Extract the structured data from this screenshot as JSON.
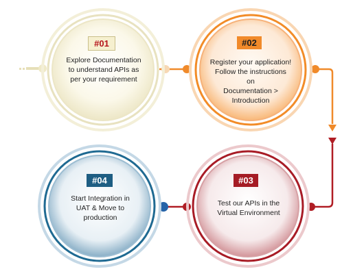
{
  "steps": [
    {
      "badge": "#01",
      "lines": [
        "Explore Documentation",
        "to understand APIs as",
        "per your requirement"
      ]
    },
    {
      "badge": "#02",
      "lines": [
        "Register your application!",
        "Follow the instructions",
        "on",
        "Documentation  >",
        "Introduction"
      ]
    },
    {
      "badge": "#03",
      "lines": [
        "Test our APIs in the",
        "Virtual Environment"
      ]
    },
    {
      "badge": "#04",
      "lines": [
        "Start Integration  in",
        "UAT & Move to",
        "production"
      ]
    }
  ],
  "colors": {
    "step1": "#e8e2c0",
    "step2": "#f28c28",
    "step3": "#a81c26",
    "step4": "#1f6a92",
    "connector_orange": "#f08a2a",
    "connector_red": "#b01d24",
    "connector_blue": "#2563a8"
  }
}
